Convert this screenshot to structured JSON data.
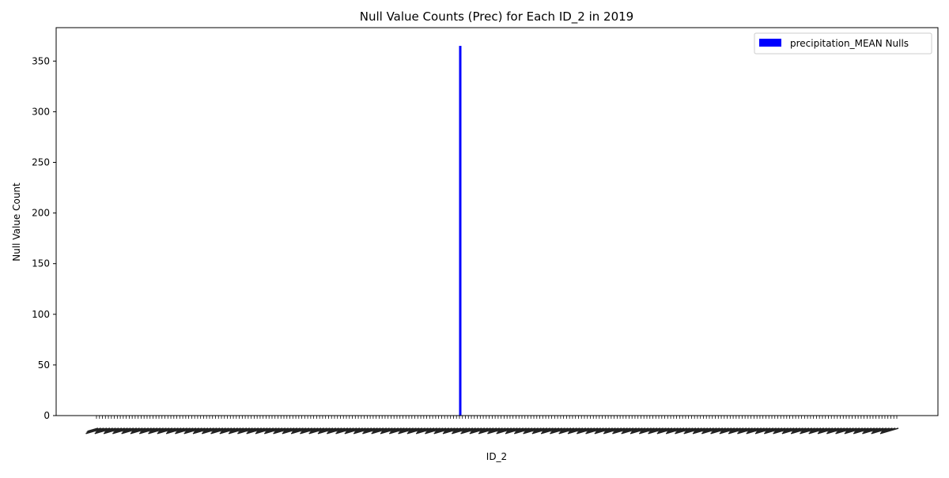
{
  "chart_data": {
    "type": "bar",
    "title": "Null Value Counts (Prec) for Each ID_2 in 2019",
    "xlabel": "ID_2",
    "ylabel": "Null Value Count",
    "ylim": [
      0,
      383
    ],
    "yticks": [
      0,
      50,
      100,
      150,
      200,
      250,
      300,
      350
    ],
    "category_count": 270,
    "series": [
      {
        "name": "precipitation_MEAN Nulls",
        "color": "#0000ff",
        "nonzero_values": [
          {
            "category_index": 122,
            "value": 365
          }
        ]
      }
    ],
    "legend": {
      "position": "top-right"
    },
    "grid": false
  }
}
